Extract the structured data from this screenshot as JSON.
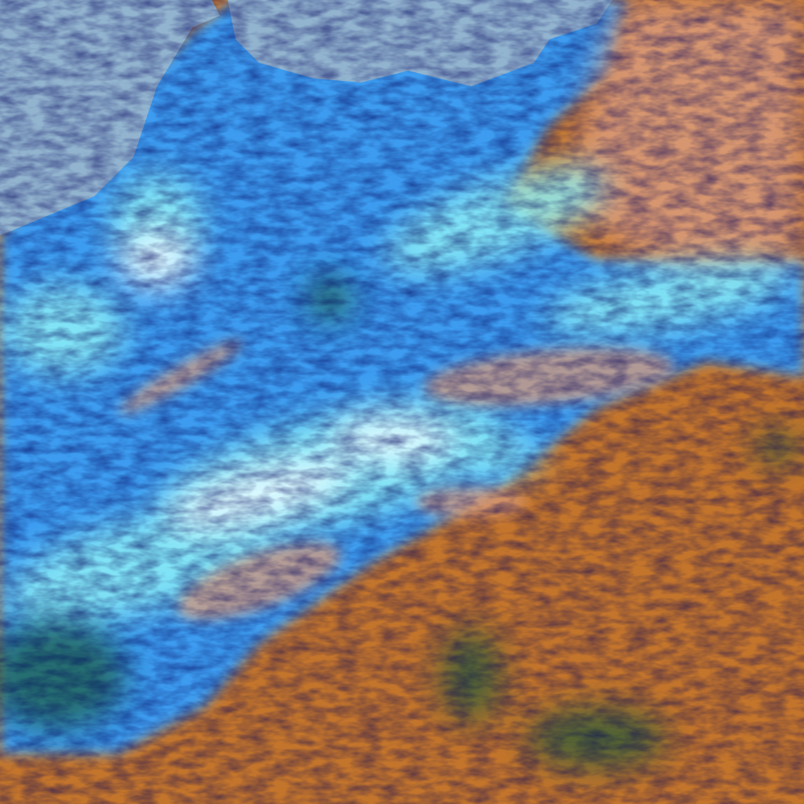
{
  "colors": {
    "sea": "#93b4cf",
    "cloud_blue": "#3d9cf0",
    "cloud_cyan": "#8ef0f6",
    "cloud_white": "#e6fbff",
    "desert_orange": "#c4752c",
    "desert_salmon": "#d99a78",
    "vegetation_green": "#1f5a3a"
  }
}
